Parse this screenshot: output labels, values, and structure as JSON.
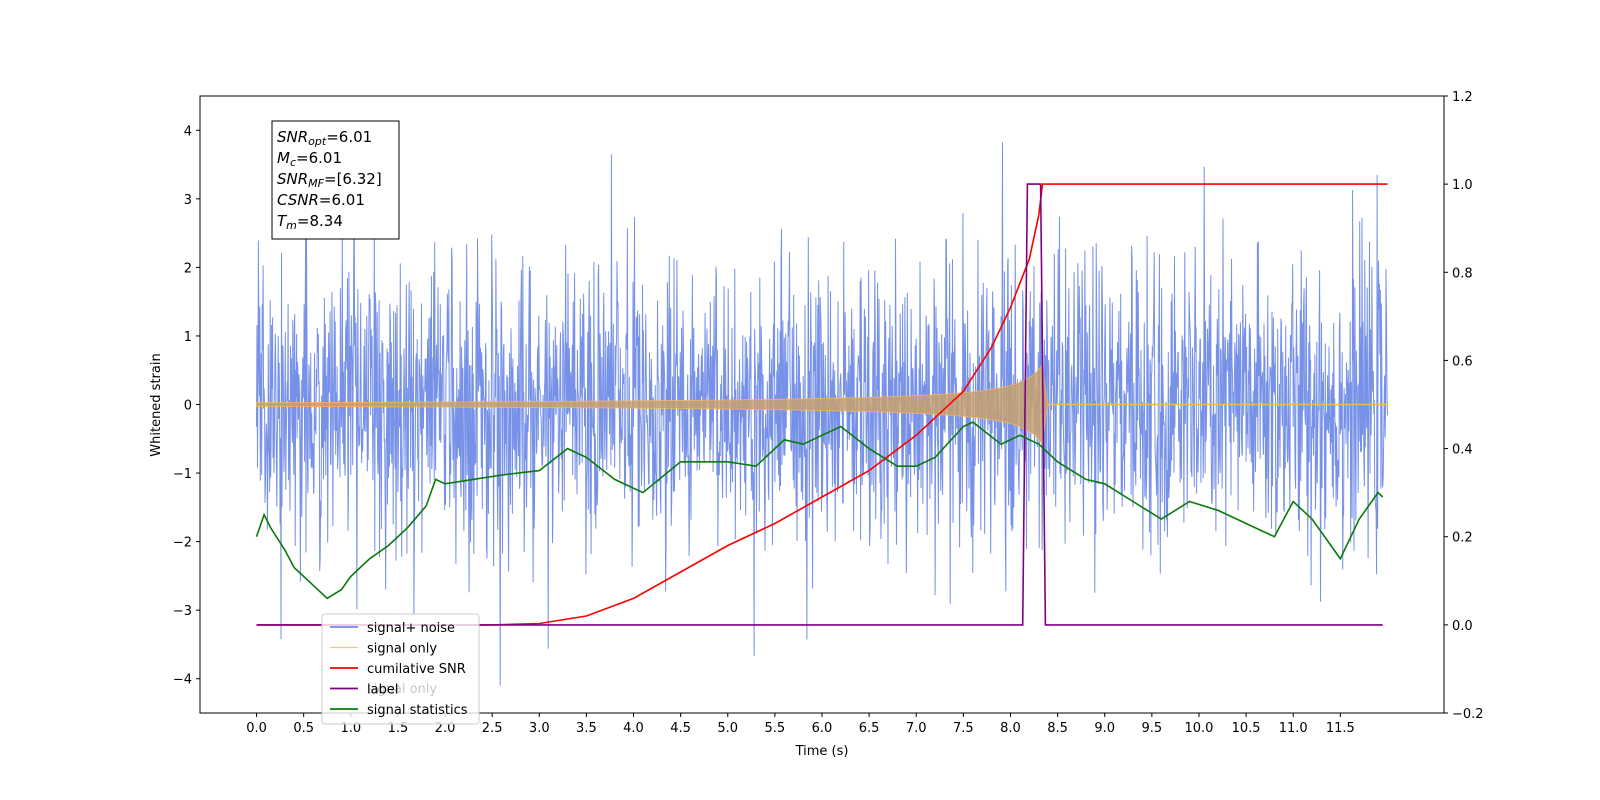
{
  "chart_data": {
    "type": "line",
    "title": "",
    "xlabel": "Time (s)",
    "ylabel": "Whitened strain",
    "xlim": [
      -0.6,
      12.6
    ],
    "ylim": [
      -4.5,
      4.5
    ],
    "y2lim": [
      -0.2,
      1.2
    ],
    "x_ticks": [
      "0.0",
      "0.5",
      "1.0",
      "1.5",
      "2.0",
      "2.5",
      "3.0",
      "3.5",
      "4.0",
      "4.5",
      "5.0",
      "5.5",
      "6.0",
      "6.5",
      "7.0",
      "7.5",
      "8.0",
      "8.5",
      "9.0",
      "9.5",
      "10.0",
      "10.5",
      "11.0",
      "11.5"
    ],
    "y_ticks": [
      -4,
      -3,
      -2,
      -1,
      0,
      1,
      2,
      3,
      4
    ],
    "y2_ticks": [
      "−0.2",
      "0.0",
      "0.2",
      "0.4",
      "0.6",
      "0.8",
      "1.0",
      "1.2"
    ],
    "y_tick_labels": [
      "−4",
      "−3",
      "−2",
      "−1",
      "0",
      "1",
      "2",
      "3",
      "4"
    ],
    "grid": false,
    "legend_position": "lower-left",
    "annotation_box": [
      {
        "sym": "SNR",
        "sub": "opt",
        "value": "=6.01"
      },
      {
        "sym": "M",
        "sub": "c",
        "value": "=6.01"
      },
      {
        "sym": "SNR",
        "sub": "MF",
        "value": "=[6.32]"
      },
      {
        "sym": "CSNR",
        "sub": "",
        "value": "=6.01"
      },
      {
        "sym": "T",
        "sub": "m",
        "value": "=8.34"
      }
    ],
    "series": [
      {
        "name": "signal+ noise",
        "axis": "left",
        "color": "#6f8be6",
        "t_start": 0.0,
        "t_end": 12.0,
        "std": 1.0,
        "y_range": [
          -4.1,
          4.05
        ]
      },
      {
        "name": "signal only",
        "axis": "left",
        "color": "#c8a070",
        "t_start": 0.0,
        "t_merger": 8.34,
        "t_end": 12.0,
        "peak_amplitude": 0.55
      },
      {
        "name": "cumilative SNR",
        "axis": "right",
        "color": "#ff0000",
        "x": [
          0.0,
          2.5,
          3.0,
          3.5,
          4.0,
          4.5,
          5.0,
          5.5,
          6.0,
          6.5,
          7.0,
          7.5,
          7.8,
          8.0,
          8.2,
          8.3,
          8.34,
          12.0
        ],
        "y": [
          0.0,
          0.0,
          0.003,
          0.02,
          0.06,
          0.12,
          0.18,
          0.23,
          0.29,
          0.35,
          0.43,
          0.53,
          0.63,
          0.72,
          0.83,
          0.93,
          1.0,
          1.0
        ]
      },
      {
        "name": "label",
        "axis": "right",
        "color": "#800080",
        "x": [
          0.0,
          8.13,
          8.18,
          8.32,
          8.37,
          11.95
        ],
        "y": [
          0.0,
          0.0,
          1.0,
          1.0,
          0.0,
          0.0
        ]
      },
      {
        "name": "signal statistics",
        "axis": "right",
        "color": "#0a7a0a",
        "x": [
          0.0,
          0.08,
          0.15,
          0.3,
          0.4,
          0.6,
          0.75,
          0.9,
          1.0,
          1.2,
          1.4,
          1.6,
          1.8,
          1.9,
          2.0,
          2.3,
          2.6,
          3.0,
          3.3,
          3.5,
          3.8,
          4.1,
          4.5,
          5.0,
          5.3,
          5.6,
          5.8,
          6.0,
          6.2,
          6.5,
          6.8,
          7.0,
          7.2,
          7.5,
          7.6,
          7.9,
          8.1,
          8.3,
          8.5,
          8.8,
          9.0,
          9.3,
          9.6,
          9.9,
          10.2,
          10.5,
          10.8,
          11.0,
          11.2,
          11.4,
          11.5,
          11.7,
          11.9,
          11.95
        ],
        "y": [
          0.2,
          0.25,
          0.22,
          0.17,
          0.13,
          0.09,
          0.06,
          0.08,
          0.11,
          0.15,
          0.18,
          0.22,
          0.27,
          0.33,
          0.32,
          0.33,
          0.34,
          0.35,
          0.4,
          0.38,
          0.33,
          0.3,
          0.37,
          0.37,
          0.36,
          0.42,
          0.41,
          0.43,
          0.45,
          0.4,
          0.36,
          0.36,
          0.38,
          0.45,
          0.46,
          0.41,
          0.43,
          0.41,
          0.37,
          0.33,
          0.32,
          0.28,
          0.24,
          0.28,
          0.26,
          0.23,
          0.2,
          0.28,
          0.24,
          0.18,
          0.15,
          0.24,
          0.3,
          0.29
        ]
      }
    ],
    "legend": [
      "signal+ noise",
      "signal only",
      "cumilative SNR",
      "label",
      "signal statistics"
    ],
    "hidden_legend_text": "signal only"
  }
}
